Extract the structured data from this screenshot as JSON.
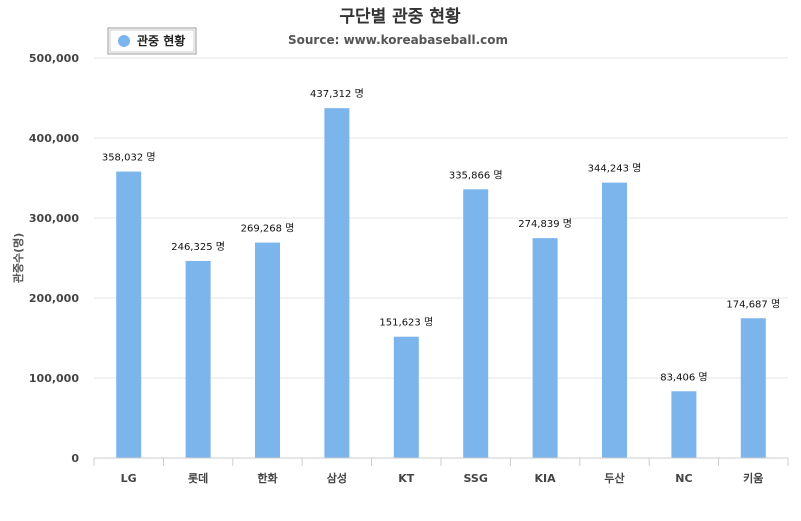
{
  "chart_data": {
    "type": "bar",
    "title": "구단별 관중 현황",
    "subtitle": "Source: www.koreabaseball.com",
    "xlabel": "",
    "ylabel": "관중수(명)",
    "ylim": [
      0,
      500000
    ],
    "yticks": [
      "0",
      "100,000",
      "200,000",
      "300,000",
      "400,000",
      "500,000"
    ],
    "categories": [
      "LG",
      "롯데",
      "한화",
      "삼성",
      "KT",
      "SSG",
      "KIA",
      "두산",
      "NC",
      "키움"
    ],
    "series": [
      {
        "name": "관중 현황",
        "color": "#7cb5ec",
        "values": [
          358032,
          246325,
          269268,
          437312,
          151623,
          335866,
          274839,
          344243,
          83406,
          174687
        ],
        "labels": [
          "358,032 명",
          "246,325 명",
          "269,268 명",
          "437,312 명",
          "151,623 명",
          "335,866 명",
          "274,839 명",
          "344,243 명",
          "83,406 명",
          "174,687 명"
        ]
      }
    ],
    "grid": true,
    "legend": "top-left"
  }
}
